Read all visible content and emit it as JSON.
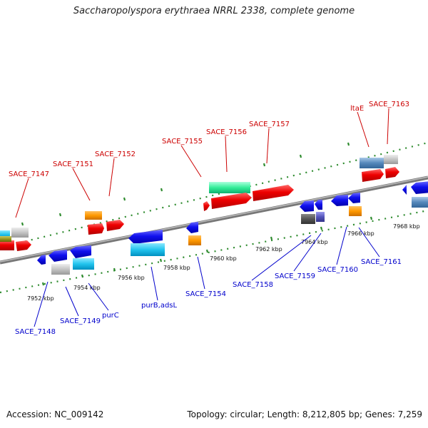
{
  "title": "Saccharopolyspora erythraea NRRL 2338, complete genome",
  "footer": {
    "accession": "Accession: NC_009142",
    "summary": "Topology: circular; Length: 8,212,805 bp; Genes: 7,259"
  },
  "colors": {
    "forward_label": "#cc0000",
    "reverse_label": "#0000cc",
    "backbone": "#888888",
    "tick_dots": "#2e8b2e"
  },
  "ticks": [
    "7952 kbp",
    "7954 kbp",
    "7956 kbp",
    "7958 kbp",
    "7960 kbp",
    "7962 kbp",
    "7964 kbp",
    "7966 kbp",
    "7968 kbp"
  ],
  "forward_labels": [
    "SACE_7147",
    "SACE_7151",
    "SACE_7152",
    "SACE_7155",
    "SACE_7156",
    "SACE_7157",
    "ltaE",
    "SACE_7163"
  ],
  "reverse_labels": [
    "SACE_7148",
    "SACE_7149",
    "purC",
    "purB,adsL",
    "SACE_7154",
    "SACE_7158",
    "SACE_7159",
    "SACE_7160",
    "SACE_7161"
  ]
}
